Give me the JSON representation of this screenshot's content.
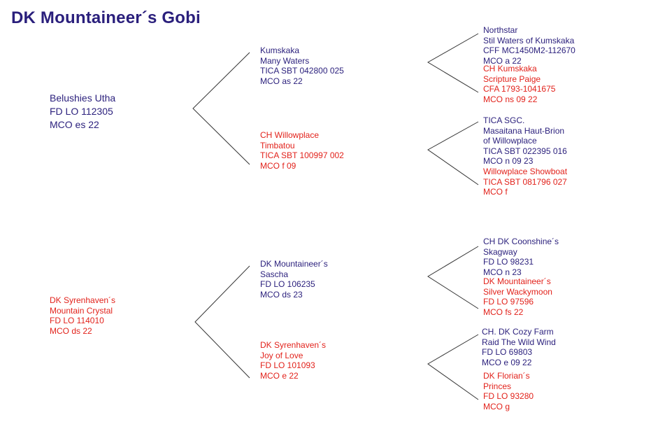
{
  "title": "DK Mountaineer´s Gobi",
  "sire": {
    "lines": [
      "Belushies Utha",
      "FD LO 112305",
      "MCO es 22"
    ],
    "sire": {
      "lines": [
        "Kumskaka",
        "Many Waters",
        "TICA SBT 042800 025",
        "MCO as 22"
      ],
      "sire": {
        "lines": [
          "Northstar",
          "Stil Waters of Kumskaka",
          "CFF MC1450M2-112670",
          "MCO a 22"
        ]
      },
      "dam": {
        "lines": [
          "CH Kumskaka",
          "Scripture Paige",
          "CFA 1793-1041675",
          "MCO ns 09 22"
        ]
      }
    },
    "dam": {
      "lines": [
        "CH Willowplace",
        "Timbatou",
        "TICA SBT 100997 002",
        "MCO f 09"
      ],
      "sire": {
        "lines": [
          "TICA SGC.",
          "Masaitana Haut-Brion",
          "of Willowplace",
          "TICA SBT 022395 016",
          "MCO n 09 23"
        ]
      },
      "dam": {
        "lines": [
          "Willowplace Showboat",
          "TICA SBT 081796 027",
          "MCO f"
        ]
      }
    }
  },
  "dam": {
    "lines": [
      "DK Syrenhaven´s",
      "Mountain Crystal",
      "FD LO 114010",
      "MCO ds 22"
    ],
    "sire": {
      "lines": [
        "DK Mountaineer´s",
        "Sascha",
        "FD LO 106235",
        "MCO ds 23"
      ],
      "sire": {
        "lines": [
          "CH DK Coonshine´s",
          "Skagway",
          "FD LO 98231",
          "MCO n 23"
        ]
      },
      "dam": {
        "lines": [
          "DK Mountaineer´s",
          "Silver Wackymoon",
          "FD LO 97596",
          "MCO fs 22"
        ]
      }
    },
    "dam": {
      "lines": [
        "DK Syrenhaven´s",
        "Joy of Love",
        "FD LO 101093",
        "MCO e 22"
      ],
      "sire": {
        "lines": [
          "CH. DK Cozy Farm",
          "Raid The Wild Wind",
          "FD LO 69803",
          "MCO e 09 22"
        ]
      },
      "dam": {
        "lines": [
          "DK Florian´s",
          "Princes",
          "FD LO 93280",
          "MCO g"
        ]
      }
    }
  },
  "colors": {
    "male": "#2a1f7c",
    "female": "#e2221b",
    "lines": "#333333"
  }
}
